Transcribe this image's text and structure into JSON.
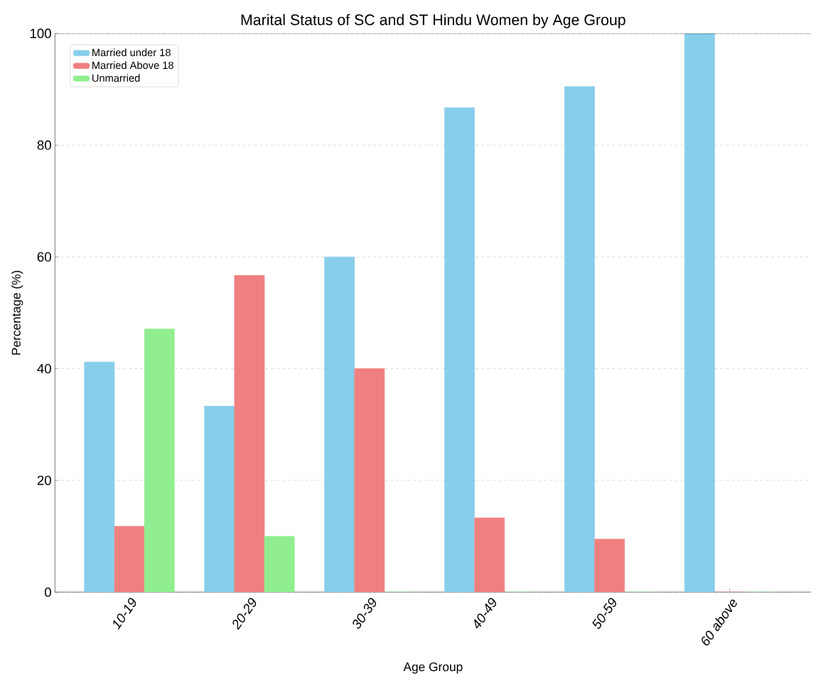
{
  "chart_data": {
    "type": "bar",
    "title": "Marital Status of SC and ST Hindu Women by Age Group",
    "xlabel": "Age Group",
    "ylabel": "Percentage (%)",
    "categories": [
      "10-19",
      "20-29",
      "30-39",
      "40-49",
      "50-59",
      "60 above"
    ],
    "series": [
      {
        "name": "Married under 18",
        "color": "#87ceeb",
        "values": [
          41.2,
          33.3,
          60.0,
          86.7,
          90.5,
          100
        ]
      },
      {
        "name": "Married Above 18",
        "color": "#f08080",
        "values": [
          11.8,
          56.7,
          40.0,
          13.3,
          9.5,
          0
        ]
      },
      {
        "name": "Unmarried",
        "color": "#90ee90",
        "values": [
          47.1,
          10.0,
          0,
          0,
          0,
          0
        ]
      }
    ],
    "ylim": [
      0,
      100
    ],
    "yticks": [
      0,
      20,
      40,
      60,
      80,
      100
    ],
    "grid": "y",
    "legend": "top left"
  }
}
